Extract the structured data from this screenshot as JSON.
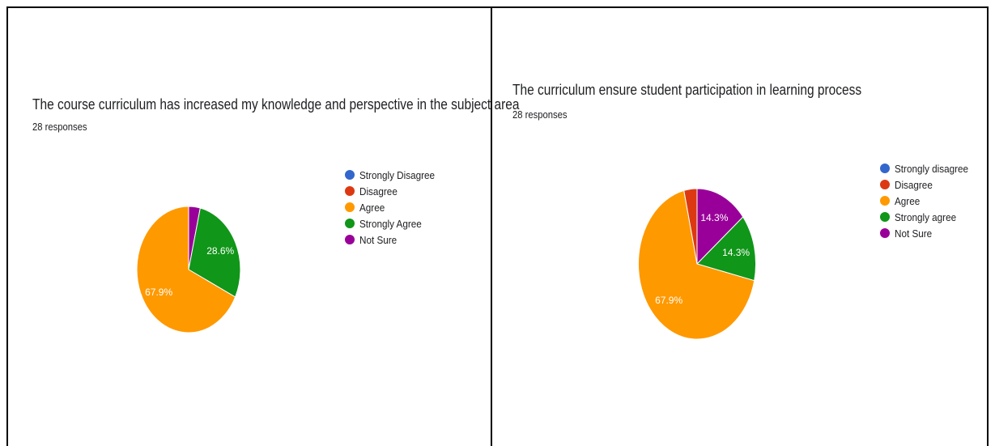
{
  "chart_data": [
    {
      "type": "pie",
      "title": "The course curriculum has increased my knowledge and perspective in the subject area",
      "subtitle": "28 responses",
      "legend_position": "right",
      "categories": [
        "Strongly Disagree",
        "Disagree",
        "Agree",
        "Strongly Agree",
        "Not Sure"
      ],
      "values": [
        0,
        0,
        67.9,
        28.6,
        3.6
      ],
      "colors": [
        "#3366cc",
        "#dc3912",
        "#ff9900",
        "#109618",
        "#990099"
      ],
      "data_labels": [
        "",
        "",
        "67.9%",
        "28.6%",
        ""
      ]
    },
    {
      "type": "pie",
      "title": "The curriculum ensure student participation in learning process",
      "subtitle": "28 responses",
      "legend_position": "right",
      "categories": [
        "Strongly disagree",
        "Disagree",
        "Agree",
        "Strongly agree",
        "Not Sure"
      ],
      "values": [
        0,
        3.6,
        67.9,
        14.3,
        14.3
      ],
      "colors": [
        "#3366cc",
        "#dc3912",
        "#ff9900",
        "#109618",
        "#990099"
      ],
      "data_labels": [
        "",
        "",
        "67.9%",
        "14.3%",
        "14.3%"
      ]
    }
  ]
}
